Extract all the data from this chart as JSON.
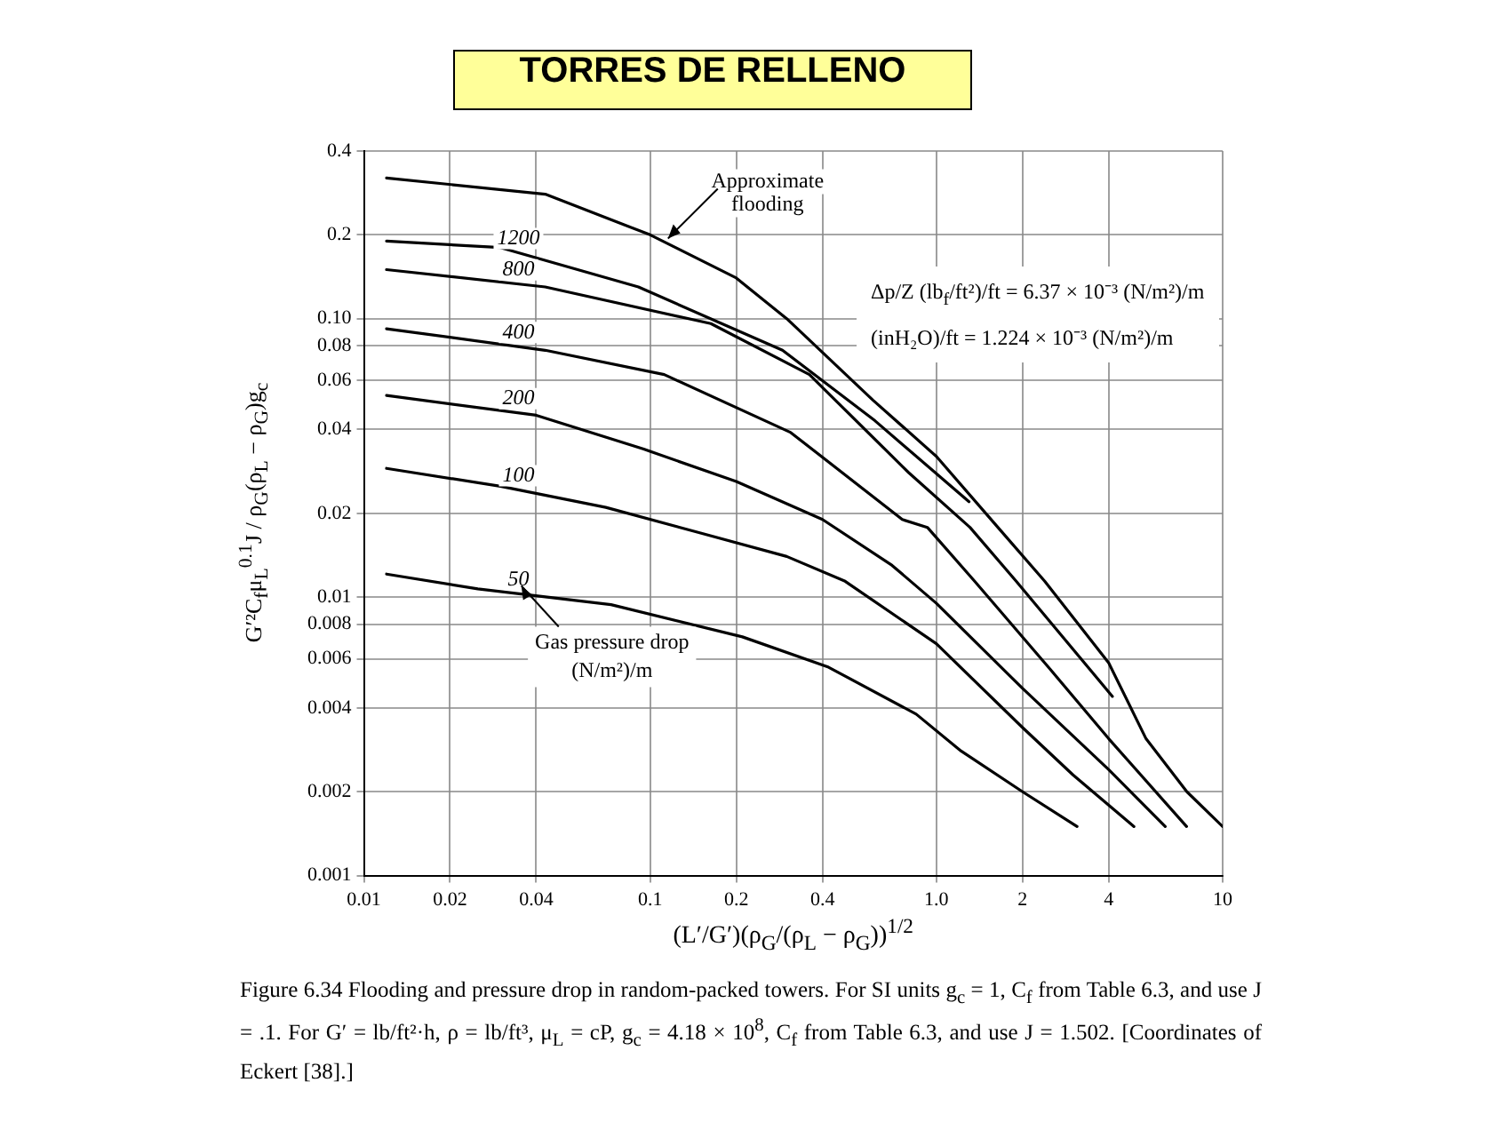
{
  "chart_data": {
    "type": "line",
    "title": "TORRES DE RELLENO",
    "xlabel": "(L′/G′)(ρ$_{G}$/(ρ$_{L}$ − ρ$_{G}$))$^{1/2}$",
    "ylabel": "G′²C$_{f}$μ$_{L}$$^{0.1}$J / ρ$_{G}$(ρ$_{L}$ − ρ$_{G}$)g$_{c}$",
    "log": "xy",
    "xlim": [
      0.01,
      10
    ],
    "ylim": [
      0.001,
      0.4
    ],
    "xticks": [
      0.01,
      0.02,
      0.04,
      0.1,
      0.2,
      0.4,
      {
        "value": 1,
        "label": "1.0"
      },
      2,
      4,
      10
    ],
    "yticks": [
      0.001,
      0.002,
      0.004,
      0.006,
      0.008,
      0.01,
      0.02,
      0.04,
      0.06,
      0.08,
      {
        "value": 0.1,
        "label": "0.10"
      },
      0.2,
      0.4
    ],
    "grid": true,
    "marker": "none",
    "line_style": "solid",
    "annotations": [
      {
        "text": "Gas pressure drop\n(N/m²)/m",
        "x": 0.035,
        "y": 0.0113
      },
      "Δp/Z  (lb$_{f}$/ft²)/ft = 6.37 × 10⁻³ (N/m²)/m\n(inH₂O)/ft = 1.224 × 10⁻³ (N/m²)/m",
      "Figure 6.34 Flooding and pressure drop in random-packed towers. For SI units g$_{c}$ = 1, C$_{f}$ from Table 6.3, and use J = .1. For G′ = lb/ft²·h, ρ = lb/ft³, μ$_{L}$ = cP, g$_{c}$ = 4.18 × 10$^{8}$, C$_{f}$ from Table 6.3, and use J = 1.502. [Coordinates of Eckert [38].]"
    ],
    "series": [
      {
        "name": "Approximate flooding",
        "color": "#000000",
        "x": [
          0.012,
          0.043,
          0.1,
          0.2,
          0.3,
          0.6,
          1.0,
          1.64,
          2.39,
          4.0,
          5.4,
          7.5,
          10
        ],
        "values": [
          0.32,
          0.28,
          0.2,
          0.14,
          0.1,
          0.051,
          0.032,
          0.0178,
          0.0114,
          0.0058,
          0.0031,
          0.002,
          0.0015
        ]
      },
      {
        "name": "1200",
        "color": "#000000",
        "x": [
          0.012,
          0.03,
          0.091,
          0.29,
          0.61,
          1.3
        ],
        "values": [
          0.19,
          0.18,
          0.13,
          0.077,
          0.043,
          0.022
        ]
      },
      {
        "name": "800",
        "color": "#000000",
        "x": [
          0.012,
          0.043,
          0.163,
          0.36,
          0.8,
          1.31,
          1.9,
          4.12
        ],
        "values": [
          0.15,
          0.13,
          0.096,
          0.063,
          0.028,
          0.0178,
          0.0114,
          0.0044
        ]
      },
      {
        "name": "400",
        "color": "#000000",
        "x": [
          0.012,
          0.043,
          0.112,
          0.31,
          0.76,
          0.93,
          1.36,
          2.5,
          4.0,
          7.48
        ],
        "values": [
          0.092,
          0.077,
          0.063,
          0.039,
          0.019,
          0.0178,
          0.0114,
          0.0055,
          0.0031,
          0.0015
        ]
      },
      {
        "name": "200",
        "color": "#000000",
        "x": [
          0.012,
          0.04,
          0.095,
          0.2,
          0.4,
          0.7,
          1.0,
          2.0,
          4.0,
          6.3
        ],
        "values": [
          0.053,
          0.045,
          0.034,
          0.026,
          0.019,
          0.013,
          0.0095,
          0.0047,
          0.0024,
          0.0015
        ]
      },
      {
        "name": "100",
        "color": "#000000",
        "x": [
          0.012,
          0.03,
          0.07,
          0.15,
          0.3,
          0.48,
          1.0,
          2.0,
          3.0,
          4.9
        ],
        "values": [
          0.029,
          0.025,
          0.021,
          0.017,
          0.014,
          0.0114,
          0.0068,
          0.0034,
          0.0023,
          0.0015
        ]
      },
      {
        "name": "50",
        "color": "#000000",
        "x": [
          0.012,
          0.025,
          0.073,
          0.21,
          0.42,
          0.85,
          1.22,
          2.0,
          3.1
        ],
        "values": [
          0.0121,
          0.0107,
          0.0094,
          0.0072,
          0.0056,
          0.0038,
          0.0028,
          0.002,
          0.0015
        ]
      }
    ]
  }
}
